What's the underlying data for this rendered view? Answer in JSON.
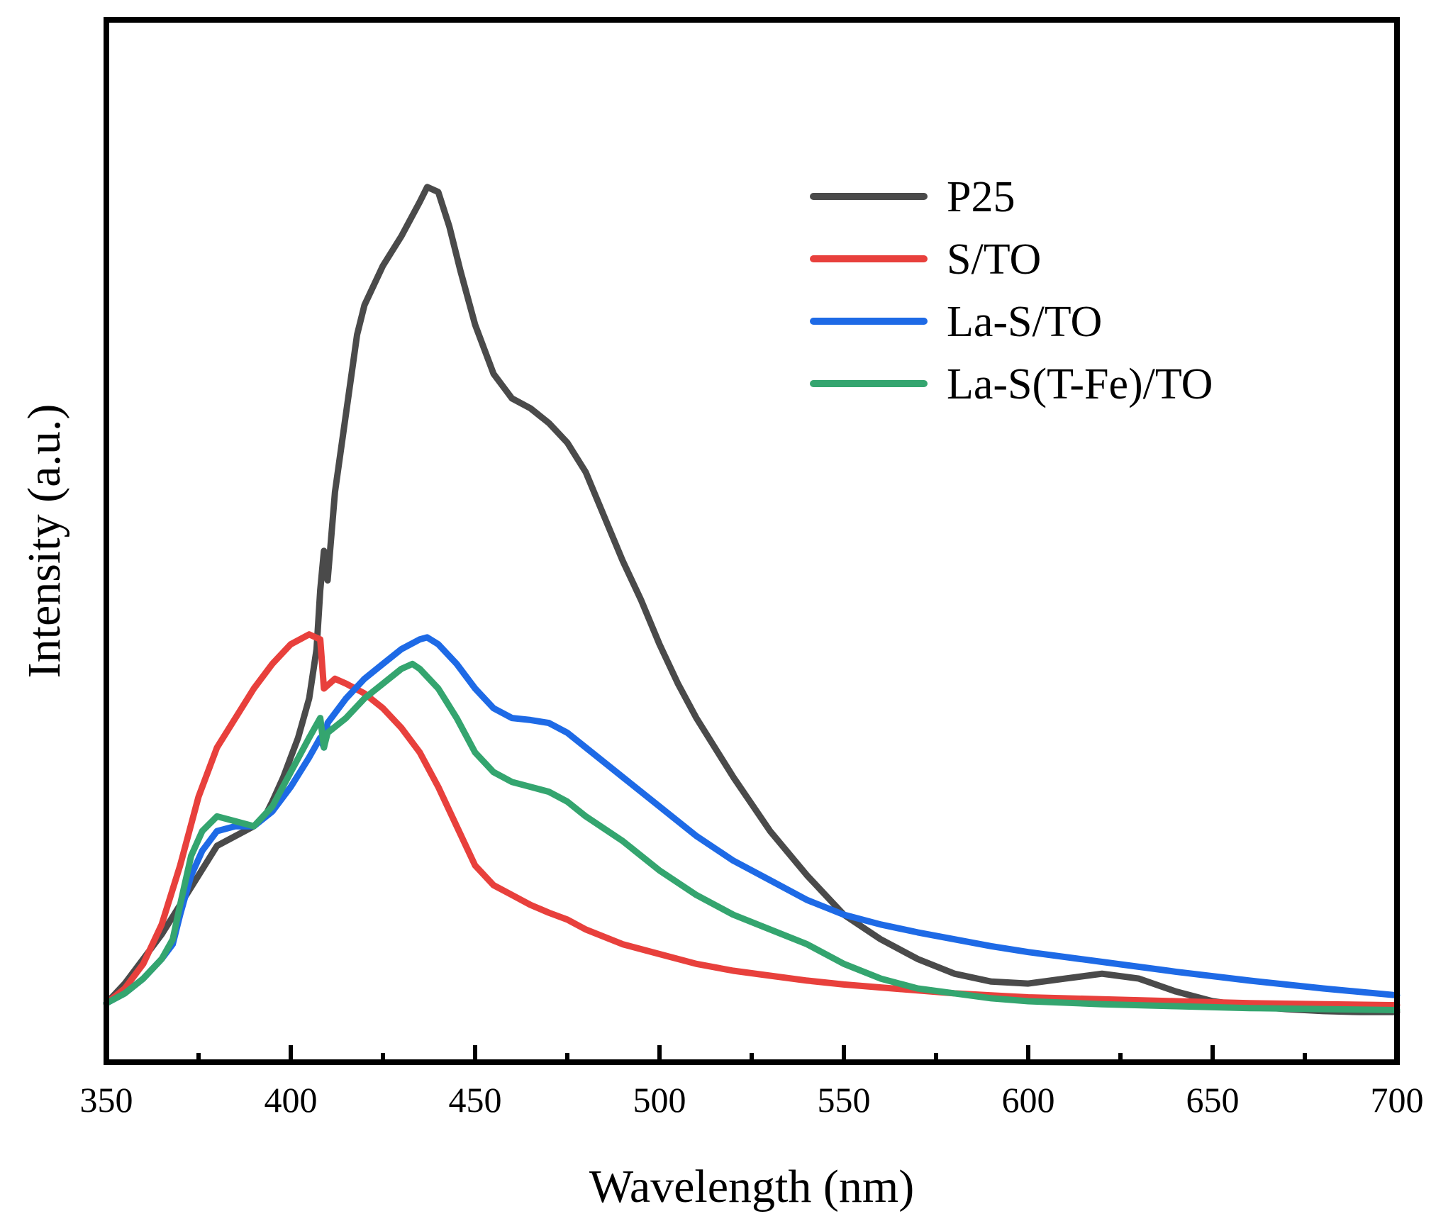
{
  "chart_data": {
    "type": "line",
    "title": "",
    "xlabel": "Wavelength (nm)",
    "ylabel": "Intensity (a.u.)",
    "xlim": [
      350,
      700
    ],
    "ylim": [
      -0.06,
      1.0
    ],
    "x_ticks": [
      350,
      400,
      450,
      500,
      550,
      600,
      650,
      700
    ],
    "x_tick_labels": [
      "350",
      "400",
      "450",
      "500",
      "550",
      "600",
      "650",
      "700"
    ],
    "minor_x_ticks": [
      375,
      425,
      475,
      525,
      575,
      625,
      675
    ],
    "y_ticks_shown": false,
    "grid": false,
    "legend": {
      "position": "top-right"
    },
    "series": [
      {
        "name": "P25",
        "color": "#4a4a4a",
        "points": [
          [
            350,
            0.0
          ],
          [
            355,
            0.02
          ],
          [
            360,
            0.045
          ],
          [
            365,
            0.07
          ],
          [
            370,
            0.1
          ],
          [
            375,
            0.13
          ],
          [
            380,
            0.16
          ],
          [
            385,
            0.17
          ],
          [
            390,
            0.18
          ],
          [
            393,
            0.19
          ],
          [
            395,
            0.205
          ],
          [
            398,
            0.23
          ],
          [
            400,
            0.25
          ],
          [
            402,
            0.27
          ],
          [
            405,
            0.31
          ],
          [
            407,
            0.36
          ],
          [
            408,
            0.42
          ],
          [
            409,
            0.46
          ],
          [
            410,
            0.43
          ],
          [
            412,
            0.52
          ],
          [
            415,
            0.6
          ],
          [
            418,
            0.68
          ],
          [
            420,
            0.71
          ],
          [
            425,
            0.75
          ],
          [
            430,
            0.78
          ],
          [
            435,
            0.815
          ],
          [
            437,
            0.83
          ],
          [
            440,
            0.825
          ],
          [
            443,
            0.79
          ],
          [
            446,
            0.745
          ],
          [
            450,
            0.69
          ],
          [
            455,
            0.64
          ],
          [
            460,
            0.615
          ],
          [
            465,
            0.605
          ],
          [
            470,
            0.59
          ],
          [
            475,
            0.57
          ],
          [
            480,
            0.54
          ],
          [
            485,
            0.495
          ],
          [
            490,
            0.45
          ],
          [
            495,
            0.41
          ],
          [
            500,
            0.365
          ],
          [
            505,
            0.325
          ],
          [
            510,
            0.29
          ],
          [
            520,
            0.23
          ],
          [
            530,
            0.175
          ],
          [
            540,
            0.13
          ],
          [
            550,
            0.09
          ],
          [
            560,
            0.065
          ],
          [
            570,
            0.045
          ],
          [
            580,
            0.03
          ],
          [
            590,
            0.022
          ],
          [
            600,
            0.02
          ],
          [
            610,
            0.025
          ],
          [
            620,
            0.03
          ],
          [
            630,
            0.025
          ],
          [
            640,
            0.012
          ],
          [
            650,
            0.002
          ],
          [
            660,
            -0.003
          ],
          [
            670,
            -0.006
          ],
          [
            680,
            -0.008
          ],
          [
            690,
            -0.009
          ],
          [
            700,
            -0.009
          ]
        ]
      },
      {
        "name": "S/TO",
        "color": "#e8403c",
        "points": [
          [
            350,
            0.0
          ],
          [
            355,
            0.015
          ],
          [
            360,
            0.04
          ],
          [
            365,
            0.08
          ],
          [
            370,
            0.14
          ],
          [
            375,
            0.21
          ],
          [
            380,
            0.26
          ],
          [
            385,
            0.29
          ],
          [
            390,
            0.32
          ],
          [
            395,
            0.345
          ],
          [
            400,
            0.365
          ],
          [
            405,
            0.375
          ],
          [
            408,
            0.37
          ],
          [
            409,
            0.32
          ],
          [
            412,
            0.33
          ],
          [
            415,
            0.325
          ],
          [
            420,
            0.315
          ],
          [
            425,
            0.3
          ],
          [
            430,
            0.28
          ],
          [
            435,
            0.255
          ],
          [
            440,
            0.22
          ],
          [
            445,
            0.18
          ],
          [
            450,
            0.14
          ],
          [
            455,
            0.12
          ],
          [
            460,
            0.11
          ],
          [
            465,
            0.1
          ],
          [
            470,
            0.092
          ],
          [
            475,
            0.085
          ],
          [
            480,
            0.075
          ],
          [
            490,
            0.06
          ],
          [
            500,
            0.05
          ],
          [
            510,
            0.04
          ],
          [
            520,
            0.033
          ],
          [
            530,
            0.028
          ],
          [
            540,
            0.023
          ],
          [
            550,
            0.019
          ],
          [
            560,
            0.016
          ],
          [
            570,
            0.013
          ],
          [
            580,
            0.01
          ],
          [
            590,
            0.008
          ],
          [
            600,
            0.006
          ],
          [
            620,
            0.004
          ],
          [
            640,
            0.002
          ],
          [
            660,
            0.0
          ],
          [
            680,
            -0.001
          ],
          [
            700,
            -0.002
          ]
        ]
      },
      {
        "name": "La-S/TO",
        "color": "#1e6ae6",
        "points": [
          [
            350,
            0.0
          ],
          [
            355,
            0.01
          ],
          [
            360,
            0.025
          ],
          [
            365,
            0.045
          ],
          [
            368,
            0.06
          ],
          [
            370,
            0.09
          ],
          [
            373,
            0.13
          ],
          [
            376,
            0.155
          ],
          [
            380,
            0.175
          ],
          [
            385,
            0.18
          ],
          [
            390,
            0.18
          ],
          [
            395,
            0.195
          ],
          [
            400,
            0.22
          ],
          [
            405,
            0.25
          ],
          [
            408,
            0.27
          ],
          [
            409,
            0.26
          ],
          [
            410,
            0.285
          ],
          [
            415,
            0.31
          ],
          [
            420,
            0.33
          ],
          [
            425,
            0.345
          ],
          [
            430,
            0.36
          ],
          [
            435,
            0.37
          ],
          [
            437,
            0.372
          ],
          [
            440,
            0.365
          ],
          [
            445,
            0.345
          ],
          [
            450,
            0.32
          ],
          [
            455,
            0.3
          ],
          [
            460,
            0.29
          ],
          [
            465,
            0.288
          ],
          [
            470,
            0.285
          ],
          [
            475,
            0.275
          ],
          [
            480,
            0.26
          ],
          [
            490,
            0.23
          ],
          [
            500,
            0.2
          ],
          [
            510,
            0.17
          ],
          [
            520,
            0.145
          ],
          [
            530,
            0.125
          ],
          [
            540,
            0.105
          ],
          [
            550,
            0.09
          ],
          [
            560,
            0.08
          ],
          [
            570,
            0.072
          ],
          [
            580,
            0.065
          ],
          [
            590,
            0.058
          ],
          [
            600,
            0.052
          ],
          [
            620,
            0.042
          ],
          [
            640,
            0.032
          ],
          [
            660,
            0.023
          ],
          [
            680,
            0.015
          ],
          [
            700,
            0.008
          ]
        ]
      },
      {
        "name": "La-S(T-Fe)/TO",
        "color": "#34a56f",
        "points": [
          [
            350,
            0.0
          ],
          [
            355,
            0.01
          ],
          [
            360,
            0.025
          ],
          [
            365,
            0.045
          ],
          [
            368,
            0.065
          ],
          [
            370,
            0.1
          ],
          [
            373,
            0.15
          ],
          [
            376,
            0.175
          ],
          [
            380,
            0.19
          ],
          [
            385,
            0.185
          ],
          [
            390,
            0.18
          ],
          [
            395,
            0.2
          ],
          [
            400,
            0.235
          ],
          [
            405,
            0.27
          ],
          [
            408,
            0.29
          ],
          [
            409,
            0.26
          ],
          [
            410,
            0.275
          ],
          [
            415,
            0.29
          ],
          [
            420,
            0.31
          ],
          [
            425,
            0.325
          ],
          [
            430,
            0.34
          ],
          [
            433,
            0.345
          ],
          [
            435,
            0.34
          ],
          [
            440,
            0.32
          ],
          [
            445,
            0.29
          ],
          [
            450,
            0.255
          ],
          [
            455,
            0.235
          ],
          [
            460,
            0.225
          ],
          [
            465,
            0.22
          ],
          [
            470,
            0.215
          ],
          [
            475,
            0.205
          ],
          [
            480,
            0.19
          ],
          [
            490,
            0.165
          ],
          [
            500,
            0.135
          ],
          [
            510,
            0.11
          ],
          [
            520,
            0.09
          ],
          [
            530,
            0.075
          ],
          [
            540,
            0.06
          ],
          [
            550,
            0.04
          ],
          [
            560,
            0.025
          ],
          [
            570,
            0.015
          ],
          [
            580,
            0.01
          ],
          [
            590,
            0.005
          ],
          [
            600,
            0.002
          ],
          [
            620,
            -0.001
          ],
          [
            640,
            -0.003
          ],
          [
            660,
            -0.005
          ],
          [
            680,
            -0.006
          ],
          [
            700,
            -0.007
          ]
        ]
      }
    ]
  }
}
